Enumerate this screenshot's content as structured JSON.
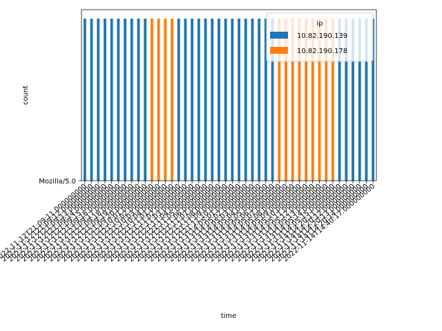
{
  "chart_data": {
    "type": "bar",
    "title": "",
    "xlabel": "time",
    "ylabel": "count",
    "y_tick_labels": [
      "Mozilla/5.0"
    ],
    "x_tick_labels": [
      "2022-11-12T21:09:11.000000000",
      "2022-11-12T21:09:12.000000000",
      "2022-11-12T21:09:13.000000000",
      "2022-11-12T21:09:14.000000000",
      "2022-11-12T21:09:15.000000000",
      "2022-11-12T21:09:16.000000000",
      "2022-11-12T21:09:17.000000000",
      "2022-11-12T21:09:18.000000000",
      "2022-11-12T21:09:19.000000000",
      "2022-11-12T21:09:20.000000000",
      "2022-11-12T21:10:01.000000000",
      "2022-11-12T21:10:02.000000000",
      "2022-11-12T21:10:03.000000000",
      "2022-11-12T21:10:04.000000000",
      "2022-11-12T21:11:01.000000000",
      "2022-11-12T21:11:02.000000000",
      "2022-11-12T21:11:03.000000000",
      "2022-11-12T21:11:04.000000000",
      "2022-11-12T21:11:05.000000000",
      "2022-11-12T21:11:06.000000000",
      "2022-11-12T21:11:07.000000000",
      "2022-11-12T21:11:08.000000000",
      "2022-11-12T21:11:09.000000000",
      "2022-11-12T21:11:10.000000000",
      "2022-11-13T14:05:01.000000000",
      "2022-11-13T14:05:02.000000000",
      "2022-11-13T14:05:03.000000000",
      "2022-11-13T14:05:04.000000000",
      "2022-11-13T14:05:05.000000000",
      "2022-11-13T14:05:06.000000000",
      "2022-11-13T14:05:07.000000000",
      "2022-11-13T14:05:08.000000000",
      "2022-11-13T14:05:09.000000000",
      "2022-11-13T14:05:10.000000000",
      "2022-11-13T14:05:11.000000000",
      "2022-11-13T14:05:12.000000000",
      "2022-11-13T14:05:13.000000000",
      "2022-11-13T14:05:14.000000000",
      "2022-11-13T14:05:15.000000000",
      "2022-11-14T14:20:11.000000000",
      "2022-11-14T14:20:12.000000000",
      "2022-11-14T14:20:13.000000000",
      "2022-11-14T14:20:14.000000000",
      "2022-11-14T14:40:17.000000000"
    ],
    "ip_per_category": [
      "10.82.190.139",
      "10.82.190.139",
      "10.82.190.139",
      "10.82.190.139",
      "10.82.190.139",
      "10.82.190.139",
      "10.82.190.139",
      "10.82.190.139",
      "10.82.190.139",
      "10.82.190.139",
      "10.82.190.178",
      "10.82.190.178",
      "10.82.190.178",
      "10.82.190.178",
      "10.82.190.139",
      "10.82.190.139",
      "10.82.190.139",
      "10.82.190.139",
      "10.82.190.139",
      "10.82.190.139",
      "10.82.190.139",
      "10.82.190.139",
      "10.82.190.139",
      "10.82.190.139",
      "10.82.190.139",
      "10.82.190.139",
      "10.82.190.139",
      "10.82.190.139",
      "10.82.190.139",
      "10.82.190.178",
      "10.82.190.178",
      "10.82.190.178",
      "10.82.190.178",
      "10.82.190.178",
      "10.82.190.178",
      "10.82.190.178",
      "10.82.190.178",
      "10.82.190.178",
      "10.82.190.139",
      "10.82.190.139",
      "10.82.190.139",
      "10.82.190.139",
      "10.82.190.139",
      "10.82.190.139"
    ],
    "legend": {
      "title": "ip",
      "placement": "top-right",
      "entries": [
        {
          "label": "10.82.190.139",
          "color": "#1f77b4"
        },
        {
          "label": "10.82.190.178",
          "color": "#ff7f0e"
        }
      ]
    },
    "grid": false
  }
}
